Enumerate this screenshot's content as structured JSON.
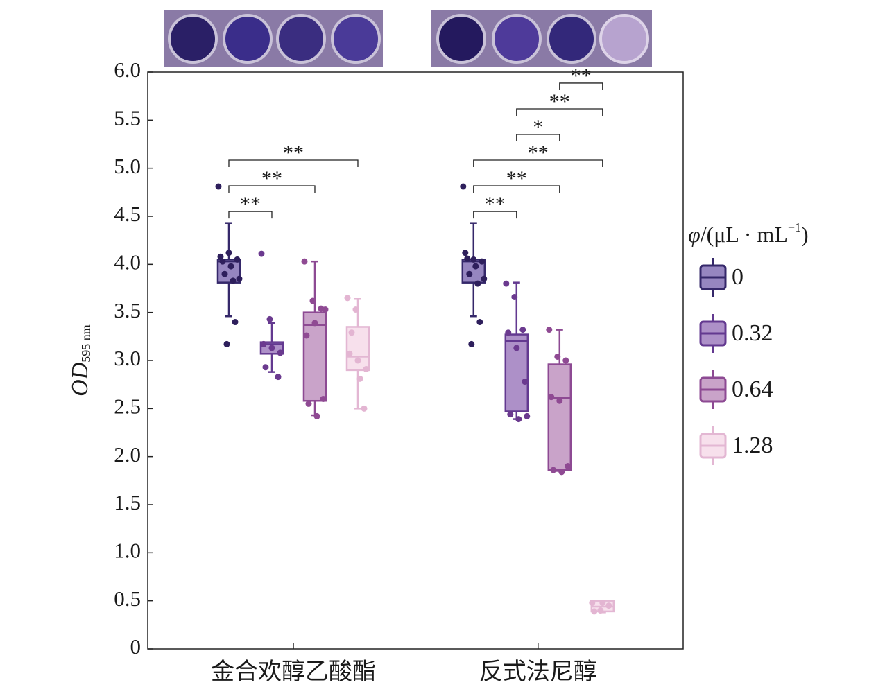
{
  "chart_data": {
    "type": "box",
    "y_label": "OD",
    "y_label_subscript": "595 nm",
    "categories": [
      "金合欢醇乙酸酯",
      "反式法尼醇"
    ],
    "ylim": [
      0,
      6
    ],
    "yticks": [
      0,
      0.5,
      {
        "value": 1,
        "label": "1.0"
      },
      1.5,
      {
        "value": 2,
        "label": "2.0"
      },
      2.5,
      {
        "value": 3,
        "label": "3.0"
      },
      3.5,
      {
        "value": 4,
        "label": "4.0"
      },
      4.5,
      {
        "value": 5,
        "label": "5.0"
      },
      5.5,
      {
        "value": 6,
        "label": "6.0"
      }
    ],
    "legend_title": [
      "φ",
      "/(μL · mL",
      "−1",
      ")"
    ],
    "legend_position": "right",
    "series": [
      {
        "name": "0",
        "color": "#9686c0",
        "edge": "#35286a",
        "point_color": "#2e1f5c",
        "boxes": [
          {
            "min": 3.46,
            "q1": 3.81,
            "median": 4.03,
            "q3": 4.05,
            "max": 4.43,
            "points": [
              4.81,
              3.17,
              3.4,
              4.08,
              4.12,
              4.05,
              4.03,
              3.98,
              3.85,
              3.9,
              3.83
            ]
          },
          {
            "min": 3.46,
            "q1": 3.81,
            "median": 4.03,
            "q3": 4.05,
            "max": 4.43,
            "points": [
              4.81,
              3.17,
              3.4,
              4.12,
              4.05,
              4.03,
              4.06,
              3.98,
              3.85,
              3.9,
              3.8
            ]
          }
        ]
      },
      {
        "name": "0.32",
        "color": "#ad90c8",
        "edge": "#633990",
        "point_color": "#6b3a8f",
        "boxes": [
          {
            "min": 2.88,
            "q1": 3.07,
            "median": 3.17,
            "q3": 3.19,
            "max": 3.39,
            "points": [
              4.11,
              3.43,
              2.83,
              3.17,
              3.13,
              3.08,
              2.93
            ]
          },
          {
            "min": 2.39,
            "q1": 2.47,
            "median": 3.2,
            "q3": 3.27,
            "max": 3.81,
            "points": [
              3.8,
              3.66,
              3.32,
              3.29,
              3.13,
              2.78,
              2.44,
              2.39,
              2.42
            ]
          }
        ]
      },
      {
        "name": "0.64",
        "color": "#c9a3c9",
        "edge": "#8d4a93",
        "point_color": "#8f4a93",
        "boxes": [
          {
            "min": 2.43,
            "q1": 2.58,
            "median": 3.37,
            "q3": 3.5,
            "max": 4.03,
            "points": [
              4.03,
              3.62,
              3.54,
              3.26,
              3.39,
              2.6,
              2.55,
              2.42,
              3.53
            ]
          },
          {
            "min": 1.85,
            "q1": 1.86,
            "median": 2.61,
            "q3": 2.96,
            "max": 3.32,
            "points": [
              3.32,
              3.04,
              3.0,
              2.62,
              2.58,
              1.9,
              1.86,
              1.84
            ]
          }
        ]
      },
      {
        "name": "1.28",
        "color": "#f7e0ec",
        "edge": "#e3b7d3",
        "point_color": "#e3b5d2",
        "boxes": [
          {
            "min": 2.5,
            "q1": 2.9,
            "median": 3.04,
            "q3": 3.35,
            "max": 3.64,
            "points": [
              3.65,
              3.53,
              2.5,
              3.07,
              3.0,
              2.91,
              3.29,
              2.81
            ]
          },
          {
            "min": 0.38,
            "q1": 0.39,
            "median": 0.44,
            "q3": 0.5,
            "max": 0.5,
            "points": [
              0.48,
              0.4,
              0.45,
              0.39,
              0.48
            ]
          }
        ]
      }
    ],
    "comparisons": [
      [
        {
          "from": 0,
          "to": 1,
          "label": "**"
        },
        {
          "from": 0,
          "to": 2,
          "label": "**"
        },
        {
          "from": 0,
          "to": 3,
          "label": "**"
        }
      ],
      [
        {
          "from": 0,
          "to": 1,
          "label": "**"
        },
        {
          "from": 0,
          "to": 2,
          "label": "**"
        },
        {
          "from": 0,
          "to": 3,
          "label": "**"
        },
        {
          "from": 1,
          "to": 2,
          "label": "*"
        },
        {
          "from": 1,
          "to": 3,
          "label": "**"
        },
        {
          "from": 2,
          "to": 3,
          "label": "**"
        }
      ]
    ]
  }
}
